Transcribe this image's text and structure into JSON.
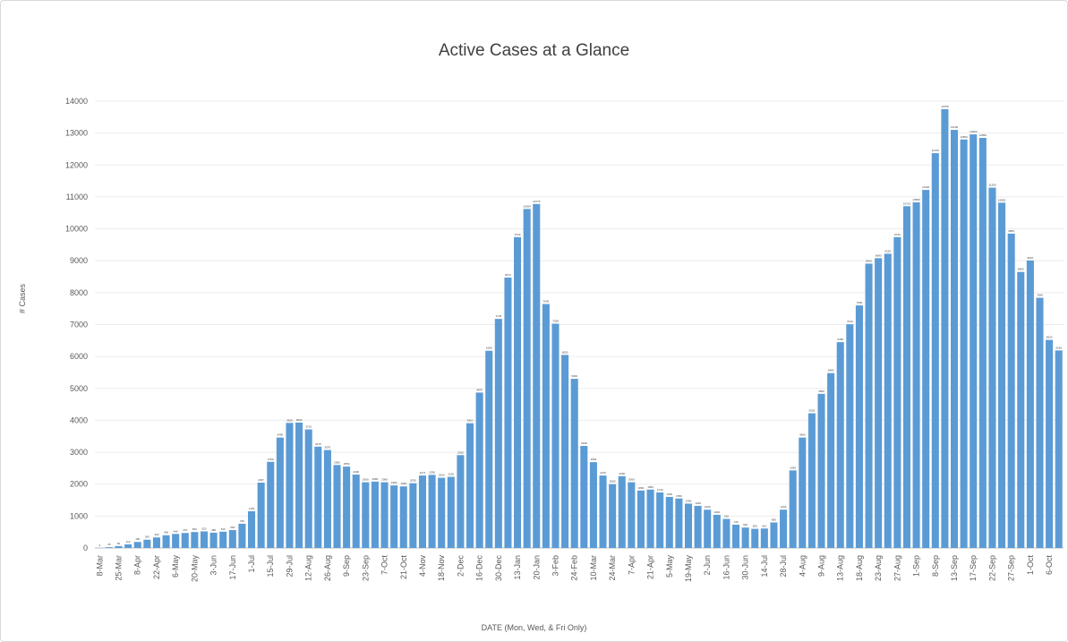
{
  "chart_data": {
    "type": "bar",
    "title": "Active Cases at a Glance",
    "xlabel": "DATE  (Mon, Wed, & Fri Only)",
    "ylabel": "# Cases",
    "ylim": [
      0,
      14000
    ],
    "yticks": [
      0,
      1000,
      2000,
      3000,
      4000,
      5000,
      6000,
      7000,
      8000,
      9000,
      10000,
      11000,
      12000,
      13000,
      14000
    ],
    "grid": true,
    "bar_color": "#5B9BD5",
    "x_tick_labels": [
      "8-Mar",
      "25-Mar",
      "8-Apr",
      "22-Apr",
      "6-May",
      "20-May",
      "3-Jun",
      "17-Jun",
      "1-Jul",
      "15-Jul",
      "29-Jul",
      "12-Aug",
      "26-Aug",
      "9-Sep",
      "23-Sep",
      "7-Oct",
      "21-Oct",
      "4-Nov",
      "18-Nov",
      "2-Dec",
      "16-Dec",
      "30-Dec",
      "13-Jan",
      "20-Jan",
      "3-Feb",
      "24-Feb",
      "10-Mar",
      "24-Mar",
      "7-Apr",
      "21-Apr",
      "5-May",
      "19-May",
      "2-Jun",
      "16-Jun",
      "30-Jun",
      "14-Jul",
      "28-Jul",
      "4-Aug",
      "9-Aug",
      "13-Aug",
      "18-Aug",
      "23-Aug",
      "27-Aug",
      "1-Sep",
      "8-Sep",
      "13-Sep",
      "17-Sep",
      "22-Sep",
      "27-Sep",
      "1-Oct",
      "6-Oct"
    ],
    "x_tick_positions": [
      0,
      2,
      4,
      6,
      8,
      10,
      12,
      14,
      16,
      18,
      20,
      22,
      24,
      26,
      28,
      30,
      32,
      34,
      36,
      38,
      40,
      42,
      44,
      46,
      48,
      50,
      52,
      54,
      56,
      58,
      60,
      62,
      64,
      66,
      68,
      70,
      72,
      74,
      76,
      78,
      80,
      82,
      84,
      86,
      88,
      90,
      92,
      94,
      96,
      98,
      100
    ],
    "values": [
      3,
      25,
      60,
      112,
      190,
      260,
      330,
      400,
      440,
      470,
      500,
      520,
      480,
      510,
      560,
      760,
      1150,
      2047,
      2700,
      3460,
      3920,
      3930,
      3716,
      3175,
      3070,
      2600,
      2550,
      2300,
      2060,
      2080,
      2060,
      1960,
      1930,
      2030,
      2271,
      2290,
      2200,
      2230,
      2910,
      3910,
      4870,
      6180,
      7178,
      8473,
      9740,
      10624,
      10779,
      7645,
      7028,
      6050,
      5300,
      3198,
      2690,
      2270,
      2000,
      2250,
      2060,
      1800,
      1830,
      1740,
      1600,
      1550,
      1390,
      1320,
      1200,
      1040,
      910,
      730,
      640,
      600,
      610,
      800,
      1200,
      2430,
      3460,
      4220,
      4830,
      5480,
      6450,
      7010,
      7600,
      8910,
      9080,
      9220,
      9740,
      10710,
      10830,
      11220,
      12370,
      13750,
      13100,
      12800,
      12960,
      12850,
      11290,
      10820,
      9850,
      8650,
      9010,
      7840,
      6520,
      6190
    ],
    "value_labels": [
      "3",
      "25",
      "60",
      "112",
      "190",
      "260",
      "330",
      "400",
      "440",
      "470",
      "500",
      "520",
      "480",
      "510",
      "560",
      "760",
      "1150",
      "2047",
      "2700",
      "3460",
      "3920",
      "3930",
      "3716",
      "3175",
      "3070",
      "2600",
      "2550",
      "2300",
      "2060",
      "2080",
      "2060",
      "1960",
      "1930",
      "2030",
      "2271",
      "2290",
      "2200",
      "2230",
      "2910",
      "3910",
      "4870",
      "6180",
      "7178",
      "8473",
      "9740",
      "10624",
      "10779",
      "7645",
      "7028",
      "6050",
      "5300",
      "3198",
      "2690",
      "2270",
      "2000",
      "2250",
      "2060",
      "1800",
      "1830",
      "1740",
      "1600",
      "1550",
      "1390",
      "1320",
      "1200",
      "1040",
      "910",
      "730",
      "640",
      "600",
      "610",
      "800",
      "1200",
      "2430",
      "3460",
      "4220",
      "4830",
      "5480",
      "6450",
      "7010",
      "7600",
      "8910",
      "9080",
      "9220",
      "9740",
      "10710",
      "10830",
      "11220",
      "12370",
      "13750",
      "13100",
      "12800",
      "12960",
      "12850",
      "11290",
      "10820",
      "9850",
      "8650",
      "9010",
      "7840",
      "6520",
      "6190"
    ]
  }
}
